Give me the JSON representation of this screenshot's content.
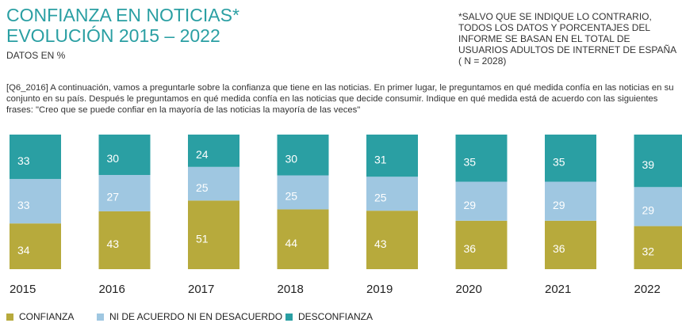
{
  "chart_data": {
    "type": "stacked_bar",
    "title": "CONFIANZA EN NOTICIAS*",
    "subtitle": "EVOLUCIÓN 2015 – 2022",
    "unit_note": "DATOS EN %",
    "footnote": "*SALVO QUE SE INDIQUE LO CONTRARIO, TODOS LOS DATOS Y PORCENTAJES DEL INFORME SE BASAN EN EL TOTAL DE USUARIOS ADULTOS DE INTERNET DE ESPAÑA ( N = 2028)",
    "question": "[Q6_2016] A continuación, vamos a preguntarle sobre la confianza que tiene en las noticias. En primer lugar, le preguntamos en qué medida confía en las noticias en su conjunto en su país. Después le preguntamos en qué medida confía en las noticias que decide consumir. Indique en qué medida está de acuerdo con las siguientes frases: \"Creo que se puede confiar en la mayoría de las noticias la mayoría de las veces\"",
    "categories": [
      "2015",
      "2016",
      "2017",
      "2018",
      "2019",
      "2020",
      "2021",
      "2022"
    ],
    "series": [
      {
        "name": "CONFIANZA",
        "color": "#b7aa3c",
        "values": [
          34,
          43,
          51,
          44,
          43,
          36,
          36,
          32
        ]
      },
      {
        "name": "NI DE ACUERDO NI EN DESACUERDO",
        "color": "#9fc7e1",
        "values": [
          33,
          27,
          25,
          25,
          25,
          29,
          29,
          29
        ]
      },
      {
        "name": "DESCONFIANZA",
        "color": "#2a9fa3",
        "values": [
          33,
          30,
          24,
          30,
          31,
          35,
          35,
          39
        ]
      }
    ]
  }
}
